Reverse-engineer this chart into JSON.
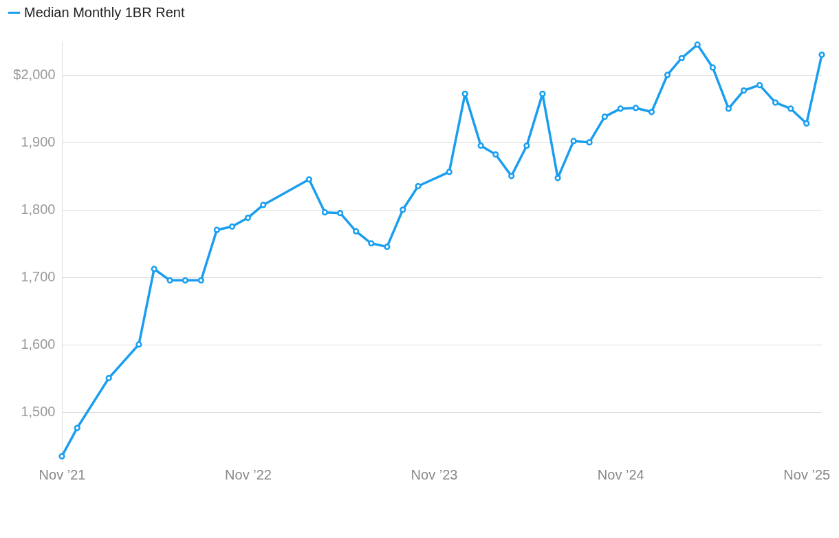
{
  "chart_data": {
    "type": "line",
    "x": [
      "2021-11",
      "2021-12",
      "2022-02",
      "2022-04",
      "2022-05",
      "2022-06",
      "2022-07",
      "2022-08",
      "2022-09",
      "2022-10",
      "2022-11",
      "2022-12",
      "2023-03",
      "2023-04",
      "2023-05",
      "2023-06",
      "2023-07",
      "2023-08",
      "2023-09",
      "2023-10",
      "2023-12",
      "2024-01",
      "2024-02",
      "2024-03",
      "2024-04",
      "2024-05",
      "2024-06",
      "2024-07",
      "2024-08",
      "2024-09",
      "2024-10",
      "2024-11",
      "2024-12",
      "2025-01",
      "2025-02",
      "2025-03",
      "2025-04",
      "2025-05",
      "2025-06",
      "2025-07",
      "2025-08",
      "2025-09",
      "2025-10",
      "2025-11",
      "2025-12"
    ],
    "series": [
      {
        "name": "Median Monthly 1BR Rent",
        "color": "#1a9ef0",
        "values": [
          1434,
          1476,
          1550,
          1600,
          1712,
          1695,
          1695,
          1695,
          1770,
          1775,
          1788,
          1807,
          1845,
          1796,
          1795,
          1768,
          1750,
          1745,
          1800,
          1835,
          1856,
          1972,
          1895,
          1882,
          1850,
          1895,
          1972,
          1847,
          1902,
          1900,
          1938,
          1950,
          1951,
          1945,
          2000,
          2025,
          2045,
          2011,
          1950,
          1977,
          1985,
          1959,
          1950,
          1928,
          2030
        ]
      }
    ],
    "xlim": [
      "2021-11",
      "2025-12"
    ],
    "xticks": [
      {
        "value": "2021-11",
        "label": "Nov ’21"
      },
      {
        "value": "2022-11",
        "label": "Nov ’22"
      },
      {
        "value": "2023-11",
        "label": "Nov ’23"
      },
      {
        "value": "2024-11",
        "label": "Nov ’24"
      },
      {
        "value": "2025-11",
        "label": "Nov ’25"
      }
    ],
    "yticks": [
      {
        "value": 1500,
        "label": "1,500"
      },
      {
        "value": 1600,
        "label": "1,600"
      },
      {
        "value": 1700,
        "label": "1,700"
      },
      {
        "value": 1800,
        "label": "1,800"
      },
      {
        "value": 1900,
        "label": "1,900"
      },
      {
        "value": 2000,
        "label": "$2,000"
      }
    ],
    "ylim": [
      1425,
      2050
    ],
    "grid": "y",
    "legend": "top left",
    "marker": "circle",
    "line_style": "solid"
  }
}
